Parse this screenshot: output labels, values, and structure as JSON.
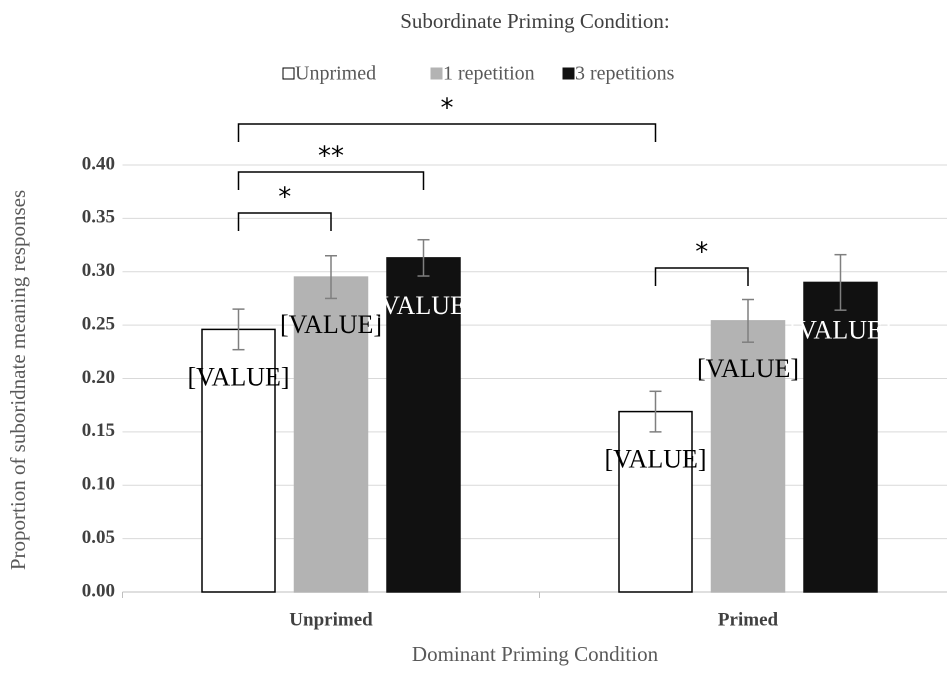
{
  "chart_data": {
    "type": "bar",
    "title": "Subordinate Priming Condition:",
    "xlabel": "Dominant Priming Condition",
    "ylabel": "Proportion of suboridnate meaning responses",
    "categories": [
      "Unprimed",
      "Primed"
    ],
    "series": [
      {
        "name": "Unprimed",
        "color": "#ffffff",
        "values": [
          0.246,
          0.169
        ],
        "errors": [
          0.019,
          0.019
        ],
        "value_labels": [
          "[VALUE]",
          "[VALUE]"
        ]
      },
      {
        "name": "1 repetition",
        "color": "#b3b3b3",
        "values": [
          0.295,
          0.254
        ],
        "errors": [
          0.02,
          0.02
        ],
        "value_labels": [
          "[VALUE]",
          "[VALUE]"
        ]
      },
      {
        "name": "3 repetitions",
        "color": "#111111",
        "values": [
          0.313,
          0.29
        ],
        "errors": [
          0.017,
          0.026
        ],
        "value_labels": [
          "[VALUE]",
          "[VALUE]"
        ]
      }
    ],
    "annotations": [
      "*",
      "**",
      "*",
      "*"
    ],
    "ylim": [
      0,
      0.4
    ],
    "yticks": [
      {
        "value": 0,
        "label": "0.00"
      },
      {
        "value": 0.05,
        "label": "0.05"
      },
      {
        "value": 0.1,
        "label": "0.10"
      },
      {
        "value": 0.15,
        "label": "0.15"
      },
      {
        "value": 0.2,
        "label": "0.20"
      },
      {
        "value": 0.25,
        "label": "0.25"
      },
      {
        "value": 0.3,
        "label": "0.30"
      },
      {
        "value": 0.35,
        "label": "0.35"
      },
      {
        "value": 0.4,
        "label": "0.40"
      }
    ],
    "grid": true,
    "legend": "top"
  }
}
